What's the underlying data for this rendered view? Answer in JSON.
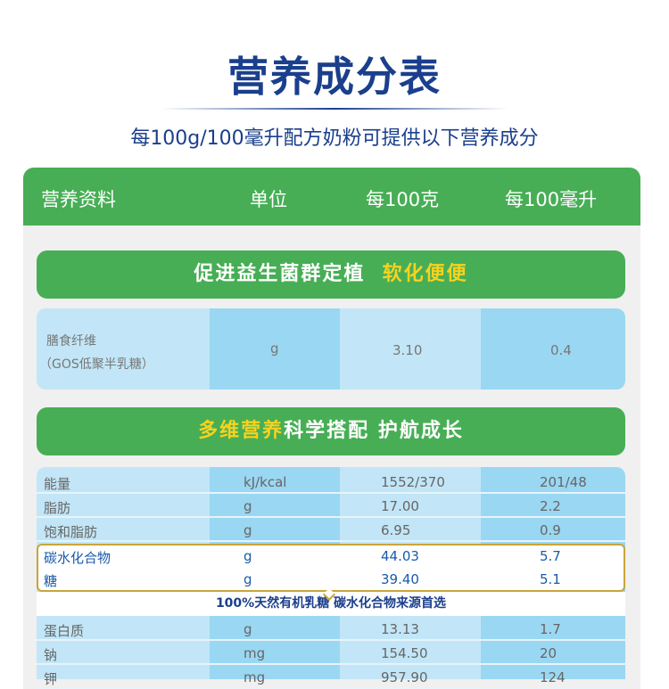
{
  "title": "营养成分表",
  "subtitle": "每100g/100毫升配方奶粉可提供以下营养成分",
  "header": [
    "营养资料",
    "单位",
    "每100克",
    "每100毫升"
  ],
  "banner1": {
    "white": "促进益生菌群定植",
    "yellow": "软化便便"
  },
  "fiber": {
    "name1": "膳食纤维",
    "name2": "（GOS低聚半乳糖）",
    "unit": "g",
    "per100g": "3.10",
    "per100ml": "0.4"
  },
  "banner2": {
    "yellow": "多维营养",
    "white": "科学搭配  护航成长"
  },
  "rows_top": [
    {
      "name": "能量",
      "unit": "kJ/kcal",
      "g": "1552/370",
      "ml": "201/48"
    },
    {
      "name": "脂肪",
      "unit": "g",
      "g": "17.00",
      "ml": "2.2"
    },
    {
      "name": "饱和脂肪",
      "unit": "g",
      "g": "6.95",
      "ml": "0.9"
    }
  ],
  "rows_highlight": [
    {
      "name": "碳水化合物",
      "unit": "g",
      "g": "44.03",
      "ml": "5.7"
    },
    {
      "name": "糖",
      "unit": "g",
      "g": "39.40",
      "ml": "5.1"
    }
  ],
  "callout": "100%天然有机乳糖    碳水化合物来源首选",
  "rows_bottom": [
    {
      "name": "蛋白质",
      "unit": "g",
      "g": "13.13",
      "ml": "1.7"
    },
    {
      "name": "钠",
      "unit": "mg",
      "g": "154.50",
      "ml": "20"
    },
    {
      "name": "钾",
      "unit": "mg",
      "g": "957.90",
      "ml": "124"
    }
  ]
}
